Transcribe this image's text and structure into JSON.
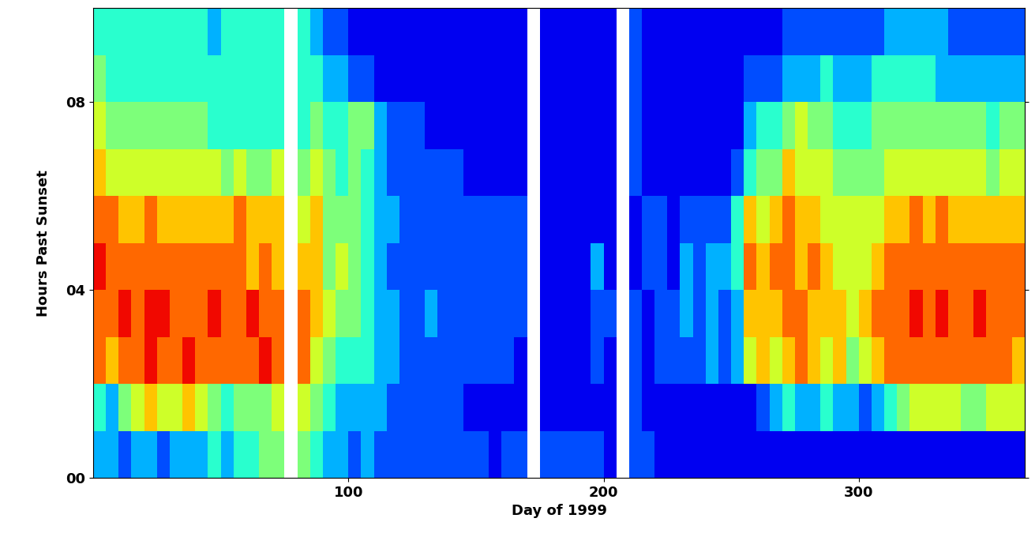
{
  "chart_data": {
    "type": "heatmap",
    "x_label": "Day of 1999",
    "y_label": "Hours Past Sunset",
    "color": "jet",
    "color_range": [
      0,
      10
    ],
    "xlim": [
      0,
      365
    ],
    "ylim": [
      0,
      10
    ],
    "xticks": [
      100,
      200,
      300
    ],
    "yticks": [
      {
        "value": 0,
        "label": "00"
      },
      {
        "value": 4,
        "label": "04"
      },
      {
        "value": 8,
        "label": "08"
      }
    ],
    "x": [
      0,
      5,
      10,
      15,
      20,
      25,
      30,
      35,
      40,
      45,
      50,
      55,
      60,
      65,
      70,
      75,
      80,
      85,
      90,
      95,
      100,
      105,
      110,
      115,
      120,
      125,
      130,
      135,
      140,
      145,
      150,
      155,
      160,
      165,
      170,
      175,
      180,
      185,
      190,
      195,
      200,
      205,
      210,
      215,
      220,
      225,
      230,
      235,
      240,
      245,
      250,
      255,
      260,
      265,
      270,
      275,
      280,
      285,
      290,
      295,
      300,
      305,
      310,
      315,
      320,
      325,
      330,
      335,
      340,
      345,
      350,
      355,
      360,
      365
    ],
    "y": [
      0,
      1,
      2,
      3,
      4,
      5,
      6,
      7,
      8,
      9,
      10
    ],
    "cells": [
      [
        3,
        3,
        2,
        3,
        3,
        2,
        3,
        3,
        3,
        4,
        3,
        4,
        4,
        5,
        5,
        null,
        5,
        4,
        3,
        3,
        2,
        3,
        2,
        2,
        2,
        2,
        2,
        2,
        2,
        2,
        2,
        1,
        2,
        2,
        null,
        2,
        2,
        2,
        2,
        2,
        1,
        null,
        2,
        2,
        1,
        1,
        1,
        1,
        1,
        1,
        1,
        1,
        1,
        1,
        1,
        1,
        1,
        1,
        1,
        1,
        1,
        1,
        1,
        1,
        1,
        1,
        1,
        1,
        1,
        1,
        1,
        1,
        1
      ],
      [
        4,
        3,
        5,
        6,
        7,
        6,
        6,
        7,
        6,
        5,
        4,
        5,
        5,
        5,
        6,
        null,
        6,
        5,
        4,
        3,
        3,
        3,
        3,
        2,
        2,
        2,
        2,
        2,
        2,
        1,
        1,
        1,
        1,
        1,
        null,
        1,
        1,
        1,
        1,
        1,
        1,
        null,
        2,
        1,
        1,
        1,
        1,
        1,
        1,
        1,
        1,
        1,
        2,
        3,
        4,
        3,
        3,
        4,
        3,
        3,
        2,
        3,
        4,
        5,
        6,
        6,
        6,
        6,
        5,
        5,
        6,
        6,
        6
      ],
      [
        8,
        7,
        8,
        8,
        9,
        8,
        8,
        9,
        8,
        8,
        8,
        8,
        8,
        9,
        8,
        null,
        8,
        6,
        5,
        4,
        4,
        4,
        3,
        3,
        2,
        2,
        2,
        2,
        2,
        2,
        2,
        2,
        2,
        1,
        null,
        1,
        1,
        1,
        1,
        2,
        1,
        null,
        2,
        1,
        2,
        2,
        2,
        2,
        3,
        2,
        3,
        6,
        7,
        6,
        7,
        8,
        7,
        6,
        7,
        5,
        6,
        7,
        8,
        8,
        8,
        8,
        8,
        8,
        8,
        8,
        8,
        8,
        7
      ],
      [
        8,
        8,
        9,
        8,
        9,
        9,
        8,
        8,
        8,
        9,
        8,
        8,
        9,
        8,
        8,
        null,
        8,
        7,
        6,
        5,
        5,
        4,
        3,
        3,
        2,
        2,
        3,
        2,
        2,
        2,
        2,
        2,
        2,
        2,
        null,
        1,
        1,
        1,
        1,
        2,
        2,
        null,
        2,
        1,
        2,
        2,
        3,
        2,
        3,
        2,
        3,
        7,
        7,
        7,
        8,
        8,
        7,
        7,
        7,
        6,
        7,
        8,
        8,
        8,
        9,
        8,
        9,
        8,
        8,
        9,
        8,
        8,
        8
      ],
      [
        9,
        8,
        8,
        8,
        8,
        8,
        8,
        8,
        8,
        8,
        8,
        8,
        7,
        8,
        7,
        null,
        7,
        7,
        5,
        6,
        5,
        4,
        3,
        2,
        2,
        2,
        2,
        2,
        2,
        2,
        2,
        2,
        2,
        2,
        null,
        1,
        1,
        1,
        1,
        3,
        1,
        null,
        1,
        2,
        2,
        1,
        3,
        2,
        3,
        3,
        4,
        8,
        7,
        8,
        8,
        7,
        8,
        7,
        6,
        6,
        6,
        7,
        8,
        8,
        8,
        8,
        8,
        8,
        8,
        8,
        8,
        8,
        8
      ],
      [
        8,
        8,
        7,
        7,
        8,
        7,
        7,
        7,
        7,
        7,
        7,
        8,
        7,
        7,
        7,
        null,
        6,
        7,
        5,
        5,
        5,
        4,
        3,
        3,
        2,
        2,
        2,
        2,
        2,
        2,
        2,
        2,
        2,
        2,
        null,
        1,
        1,
        1,
        1,
        1,
        1,
        null,
        1,
        2,
        2,
        1,
        2,
        2,
        2,
        2,
        4,
        7,
        6,
        7,
        8,
        7,
        7,
        6,
        6,
        6,
        6,
        6,
        7,
        7,
        8,
        7,
        8,
        7,
        7,
        7,
        7,
        7,
        7
      ],
      [
        7,
        6,
        6,
        6,
        6,
        6,
        6,
        6,
        6,
        6,
        5,
        6,
        5,
        5,
        6,
        null,
        5,
        6,
        5,
        4,
        5,
        4,
        3,
        2,
        2,
        2,
        2,
        2,
        2,
        1,
        1,
        1,
        1,
        1,
        null,
        1,
        1,
        1,
        1,
        1,
        1,
        null,
        2,
        1,
        1,
        1,
        1,
        1,
        1,
        1,
        2,
        4,
        5,
        5,
        7,
        6,
        6,
        6,
        5,
        5,
        5,
        5,
        6,
        6,
        6,
        6,
        6,
        6,
        6,
        6,
        5,
        6,
        6
      ],
      [
        6,
        5,
        5,
        5,
        5,
        5,
        5,
        5,
        5,
        4,
        4,
        4,
        4,
        4,
        4,
        null,
        4,
        5,
        4,
        4,
        5,
        5,
        3,
        2,
        2,
        2,
        1,
        1,
        1,
        1,
        1,
        1,
        1,
        1,
        null,
        1,
        1,
        1,
        1,
        1,
        1,
        null,
        2,
        1,
        1,
        1,
        1,
        1,
        1,
        1,
        1,
        3,
        4,
        4,
        5,
        6,
        5,
        5,
        4,
        4,
        4,
        5,
        5,
        5,
        5,
        5,
        5,
        5,
        5,
        5,
        4,
        5,
        5
      ],
      [
        5,
        4,
        4,
        4,
        4,
        4,
        4,
        4,
        4,
        4,
        4,
        4,
        4,
        4,
        4,
        null,
        4,
        4,
        3,
        3,
        2,
        2,
        1,
        1,
        1,
        1,
        1,
        1,
        1,
        1,
        1,
        1,
        1,
        1,
        null,
        1,
        1,
        1,
        1,
        1,
        1,
        null,
        2,
        1,
        1,
        1,
        1,
        1,
        1,
        1,
        1,
        2,
        2,
        2,
        3,
        3,
        3,
        4,
        3,
        3,
        3,
        4,
        4,
        4,
        4,
        4,
        3,
        3,
        3,
        3,
        3,
        3,
        3
      ],
      [
        4,
        4,
        4,
        4,
        4,
        4,
        4,
        4,
        4,
        3,
        4,
        4,
        4,
        4,
        4,
        null,
        4,
        3,
        2,
        2,
        1,
        1,
        1,
        1,
        1,
        1,
        1,
        1,
        1,
        1,
        1,
        1,
        1,
        1,
        null,
        1,
        1,
        1,
        1,
        1,
        1,
        null,
        2,
        1,
        1,
        1,
        1,
        1,
        1,
        1,
        1,
        1,
        1,
        1,
        2,
        2,
        2,
        2,
        2,
        2,
        2,
        2,
        3,
        3,
        3,
        3,
        3,
        2,
        2,
        2,
        2,
        2,
        2
      ]
    ]
  }
}
